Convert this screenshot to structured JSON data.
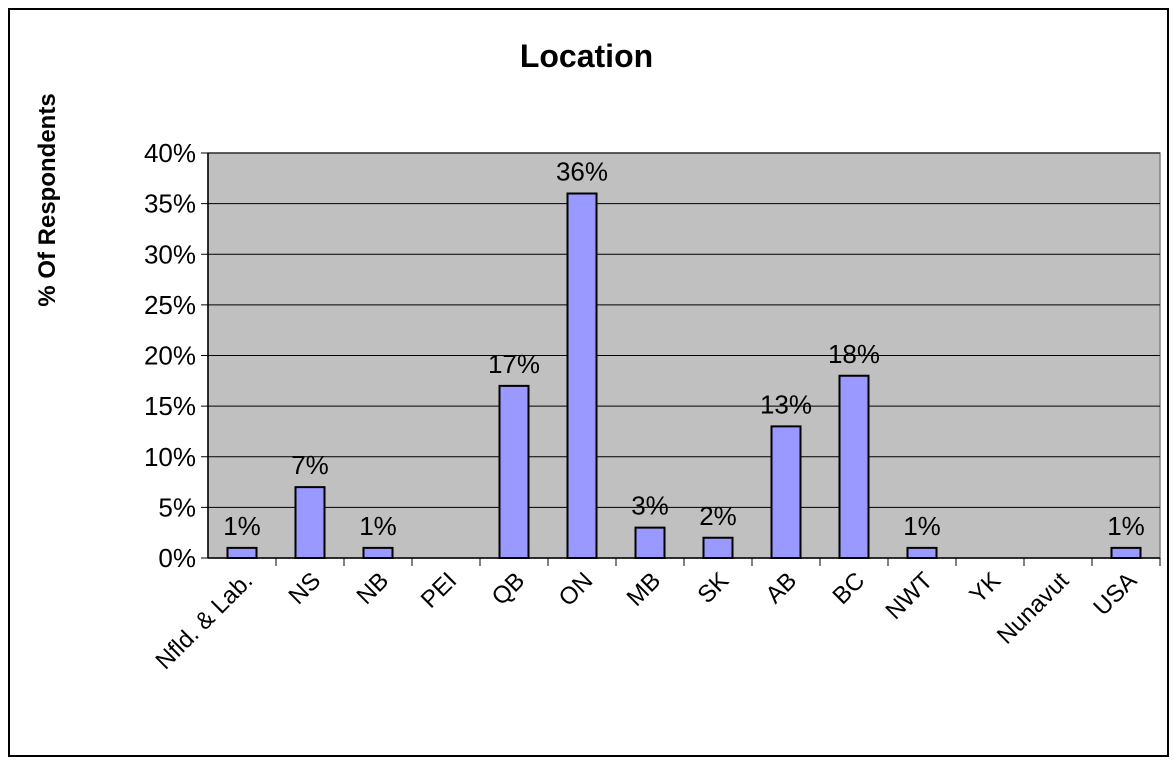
{
  "chart_data": {
    "type": "bar",
    "title": "Location",
    "ylabel": "% Of Respondents",
    "xlabel": "",
    "categories": [
      "Nfld. & Lab.",
      "NS",
      "NB",
      "PEI",
      "QB",
      "ON",
      "MB",
      "SK",
      "AB",
      "BC",
      "NWT",
      "YK",
      "Nunavut",
      "USA"
    ],
    "values": [
      1,
      7,
      1,
      0,
      17,
      36,
      3,
      2,
      13,
      18,
      1,
      0,
      0,
      1
    ],
    "data_labels": [
      "1%",
      "7%",
      "1%",
      "",
      "17%",
      "36%",
      "3%",
      "2%",
      "13%",
      "18%",
      "1%",
      "",
      "",
      "1%"
    ],
    "ylim": [
      0,
      40
    ],
    "yticks": [
      "0%",
      "5%",
      "10%",
      "15%",
      "20%",
      "25%",
      "30%",
      "35%",
      "40%"
    ],
    "grid": true,
    "legend": "none",
    "colors": {
      "bar": "#9999ff",
      "plot_bg": "#c0c0c0",
      "bar_border": "#000000"
    }
  }
}
